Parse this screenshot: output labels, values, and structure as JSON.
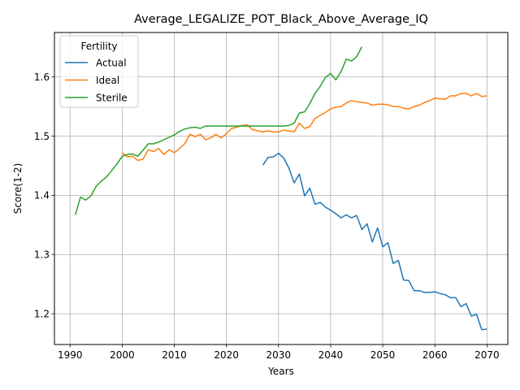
{
  "chart_data": {
    "type": "line",
    "title": "Average_LEGALIZE_POT_Black_Above_Average_IQ",
    "xlabel": "Years",
    "ylabel": "Score(1-2)",
    "xlim": [
      1987,
      2074
    ],
    "ylim": [
      1.148,
      1.675
    ],
    "xticks": [
      1990,
      2000,
      2010,
      2020,
      2030,
      2040,
      2050,
      2060,
      2070
    ],
    "xtick_labels": [
      "1990",
      "2000",
      "2010",
      "2020",
      "2030",
      "2040",
      "2050",
      "2060",
      "2070"
    ],
    "yticks": [
      1.2,
      1.3,
      1.4,
      1.5,
      1.6
    ],
    "ytick_labels": [
      "1.2",
      "1.3",
      "1.4",
      "1.5",
      "1.6"
    ],
    "grid": true,
    "legend": {
      "title": "Fertility",
      "position": "top-left"
    },
    "series": [
      {
        "name": "Actual",
        "color": "#1f77b4",
        "x": [
          2027,
          2028,
          2029,
          2030,
          2031,
          2032,
          2033,
          2034,
          2035,
          2036,
          2037,
          2038,
          2039,
          2040,
          2041,
          2042,
          2043,
          2044,
          2045,
          2046,
          2047,
          2048,
          2049,
          2050,
          2051,
          2052,
          2053,
          2054,
          2055,
          2056,
          2057,
          2058,
          2059,
          2060,
          2061,
          2062,
          2063,
          2064,
          2065,
          2066,
          2067,
          2068,
          2069,
          2070
        ],
        "y": [
          1.451,
          1.464,
          1.465,
          1.471,
          1.463,
          1.446,
          1.421,
          1.436,
          1.399,
          1.412,
          1.385,
          1.388,
          1.38,
          1.375,
          1.369,
          1.362,
          1.367,
          1.362,
          1.366,
          1.342,
          1.352,
          1.321,
          1.345,
          1.313,
          1.32,
          1.285,
          1.29,
          1.257,
          1.256,
          1.239,
          1.239,
          1.236,
          1.236,
          1.237,
          1.234,
          1.232,
          1.227,
          1.227,
          1.212,
          1.217,
          1.196,
          1.199,
          1.173,
          1.174
        ]
      },
      {
        "name": "Ideal",
        "color": "#ff7f0e",
        "x": [
          2000,
          2001,
          2002,
          2003,
          2004,
          2005,
          2006,
          2007,
          2008,
          2009,
          2010,
          2011,
          2012,
          2013,
          2014,
          2015,
          2016,
          2017,
          2018,
          2019,
          2020,
          2021,
          2022,
          2023,
          2024,
          2025,
          2026,
          2027,
          2028,
          2029,
          2030,
          2031,
          2032,
          2033,
          2034,
          2035,
          2036,
          2037,
          2038,
          2039,
          2040,
          2041,
          2042,
          2043,
          2044,
          2045,
          2046,
          2047,
          2048,
          2049,
          2050,
          2051,
          2052,
          2053,
          2054,
          2055,
          2056,
          2057,
          2058,
          2059,
          2060,
          2061,
          2062,
          2063,
          2064,
          2065,
          2066,
          2067,
          2068,
          2069,
          2070
        ],
        "y": [
          1.472,
          1.465,
          1.466,
          1.459,
          1.461,
          1.477,
          1.474,
          1.479,
          1.469,
          1.477,
          1.472,
          1.479,
          1.487,
          1.503,
          1.499,
          1.503,
          1.494,
          1.497,
          1.503,
          1.497,
          1.504,
          1.513,
          1.515,
          1.518,
          1.519,
          1.511,
          1.509,
          1.507,
          1.509,
          1.507,
          1.507,
          1.51,
          1.509,
          1.507,
          1.522,
          1.513,
          1.516,
          1.53,
          1.535,
          1.54,
          1.546,
          1.549,
          1.55,
          1.556,
          1.56,
          1.558,
          1.557,
          1.556,
          1.552,
          1.554,
          1.554,
          1.553,
          1.55,
          1.55,
          1.547,
          1.546,
          1.55,
          1.552,
          1.557,
          1.56,
          1.564,
          1.563,
          1.562,
          1.568,
          1.568,
          1.572,
          1.572,
          1.568,
          1.572,
          1.567,
          1.568
        ]
      },
      {
        "name": "Sterile",
        "color": "#2ca02c",
        "x": [
          1991,
          1992,
          1993,
          1994,
          1995,
          1996,
          1997,
          1998,
          1999,
          2000,
          2001,
          2002,
          2003,
          2004,
          2005,
          2006,
          2007,
          2008,
          2009,
          2010,
          2011,
          2012,
          2013,
          2014,
          2015,
          2016,
          2017,
          2018,
          2019,
          2020,
          2021,
          2022,
          2023,
          2024,
          2025,
          2026,
          2027,
          2028,
          2029,
          2030,
          2031,
          2032,
          2033,
          2034,
          2035,
          2036,
          2037,
          2038,
          2039,
          2040,
          2041,
          2042,
          2043,
          2044,
          2045,
          2046
        ],
        "y": [
          1.367,
          1.397,
          1.392,
          1.399,
          1.415,
          1.424,
          1.431,
          1.442,
          1.453,
          1.466,
          1.469,
          1.47,
          1.466,
          1.476,
          1.487,
          1.487,
          1.49,
          1.494,
          1.498,
          1.502,
          1.508,
          1.512,
          1.514,
          1.515,
          1.513,
          1.517,
          1.517,
          1.517,
          1.517,
          1.517,
          1.517,
          1.517,
          1.517,
          1.517,
          1.517,
          1.517,
          1.517,
          1.517,
          1.517,
          1.517,
          1.517,
          1.518,
          1.522,
          1.539,
          1.541,
          1.555,
          1.572,
          1.584,
          1.599,
          1.606,
          1.595,
          1.609,
          1.63,
          1.627,
          1.634,
          1.651
        ]
      }
    ]
  }
}
